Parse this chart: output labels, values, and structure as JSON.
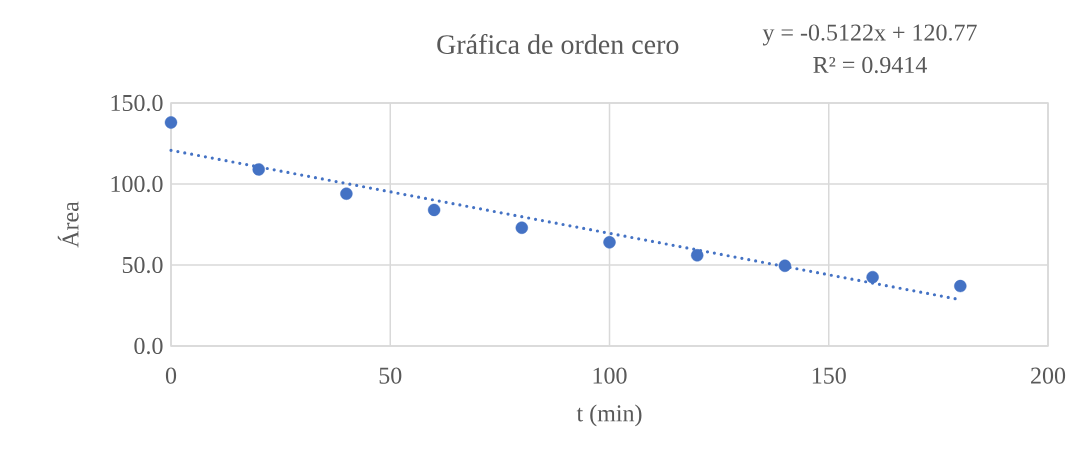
{
  "chart_data": {
    "type": "scatter",
    "title": "Gráfica de orden cero",
    "xlabel": "t (min)",
    "ylabel": "Área",
    "annotations": [
      "y = -0.5122x + 120.77",
      "R² = 0.9414"
    ],
    "series": [
      {
        "color": "#4472c4",
        "marker": "circle",
        "x": [
          0,
          20,
          40,
          60,
          80,
          100,
          120,
          140,
          160,
          180
        ],
        "values": [
          138,
          109,
          94,
          84,
          73,
          64,
          56,
          49.5,
          42.5,
          37
        ]
      },
      {
        "type": "line",
        "color": "#4472c4",
        "marker": "none",
        "line_style": "dotted",
        "x": [
          0,
          180
        ],
        "values": [
          120.8,
          28.6
        ]
      }
    ],
    "xlim": [
      0,
      200
    ],
    "xticks": [
      0,
      50,
      100,
      150,
      200
    ],
    "ylim": [
      0,
      150
    ],
    "yticks": [
      {
        "value": 0,
        "label": "0.0"
      },
      {
        "value": 50,
        "label": "50.0"
      },
      {
        "value": 100,
        "label": "100.0"
      },
      {
        "value": 150,
        "label": "150.0"
      }
    ],
    "grid": true
  }
}
